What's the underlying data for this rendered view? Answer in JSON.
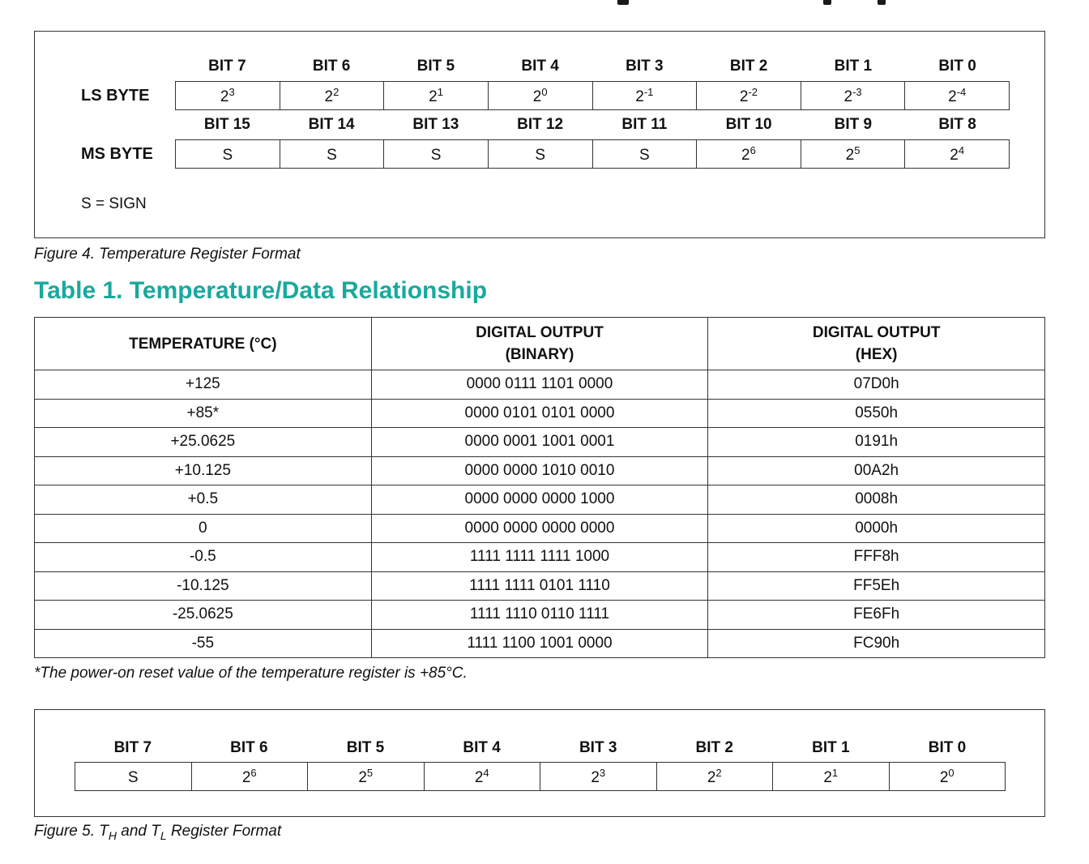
{
  "figure4": {
    "ls_label": "LS BYTE",
    "ms_label": "MS BYTE",
    "ls_bits": [
      "BIT 7",
      "BIT 6",
      "BIT 5",
      "BIT 4",
      "BIT 3",
      "BIT 2",
      "BIT 1",
      "BIT 0"
    ],
    "ls_cells": [
      {
        "base": "2",
        "exp": "3"
      },
      {
        "base": "2",
        "exp": "2"
      },
      {
        "base": "2",
        "exp": "1"
      },
      {
        "base": "2",
        "exp": "0"
      },
      {
        "base": "2",
        "exp": "-1"
      },
      {
        "base": "2",
        "exp": "-2"
      },
      {
        "base": "2",
        "exp": "-3"
      },
      {
        "base": "2",
        "exp": "-4"
      }
    ],
    "ms_bits": [
      "BIT 15",
      "BIT 14",
      "BIT 13",
      "BIT 12",
      "BIT 11",
      "BIT 10",
      "BIT 9",
      "BIT 8"
    ],
    "ms_cells": [
      {
        "base": "S",
        "exp": ""
      },
      {
        "base": "S",
        "exp": ""
      },
      {
        "base": "S",
        "exp": ""
      },
      {
        "base": "S",
        "exp": ""
      },
      {
        "base": "S",
        "exp": ""
      },
      {
        "base": "2",
        "exp": "6"
      },
      {
        "base": "2",
        "exp": "5"
      },
      {
        "base": "2",
        "exp": "4"
      }
    ],
    "sign_note": "S = SIGN",
    "caption": "Figure 4. Temperature Register Format"
  },
  "table1": {
    "title": "Table 1. Temperature/Data Relationship",
    "headers": [
      {
        "line1": "TEMPERATURE (°C)",
        "line2": ""
      },
      {
        "line1": "DIGITAL OUTPUT",
        "line2": "(BINARY)"
      },
      {
        "line1": "DIGITAL OUTPUT",
        "line2": "(HEX)"
      }
    ],
    "rows": [
      [
        "+125",
        "0000 0111 1101 0000",
        "07D0h"
      ],
      [
        "+85*",
        "0000 0101 0101 0000",
        "0550h"
      ],
      [
        "+25.0625",
        "0000 0001 1001 0001",
        "0191h"
      ],
      [
        "+10.125",
        "0000 0000 1010 0010",
        "00A2h"
      ],
      [
        "+0.5",
        "0000 0000 0000 1000",
        "0008h"
      ],
      [
        "0",
        "0000 0000 0000 0000",
        "0000h"
      ],
      [
        "-0.5",
        "1111 1111 1111 1000",
        "FFF8h"
      ],
      [
        "-10.125",
        "1111 1111 0101 1110",
        "FF5Eh"
      ],
      [
        "-25.0625",
        "1111 1110 0110 1111",
        "FE6Fh"
      ],
      [
        "-55",
        "1111 1100 1001 0000",
        "FC90h"
      ]
    ],
    "footnote": "*The power-on reset value of the temperature register is +85°C."
  },
  "figure5": {
    "bits": [
      "BIT 7",
      "BIT 6",
      "BIT 5",
      "BIT 4",
      "BIT 3",
      "BIT 2",
      "BIT 1",
      "BIT 0"
    ],
    "cells": [
      {
        "base": "S",
        "exp": ""
      },
      {
        "base": "2",
        "exp": "6"
      },
      {
        "base": "2",
        "exp": "5"
      },
      {
        "base": "2",
        "exp": "4"
      },
      {
        "base": "2",
        "exp": "3"
      },
      {
        "base": "2",
        "exp": "2"
      },
      {
        "base": "2",
        "exp": "1"
      },
      {
        "base": "2",
        "exp": "0"
      }
    ],
    "caption": {
      "prefix": "Figure 5. T",
      "sub1": "H",
      "middle": " and T",
      "sub2": "L",
      "suffix": " Register Format"
    }
  }
}
